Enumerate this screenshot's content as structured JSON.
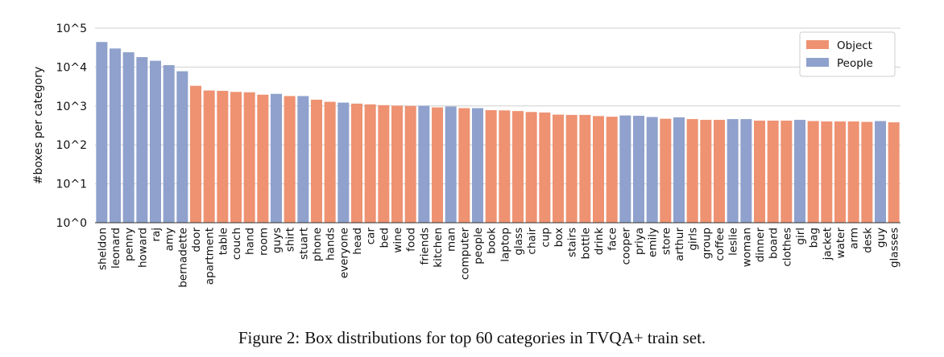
{
  "chart_data": {
    "type": "bar",
    "yscale": "log",
    "ylabel": "#boxes per category",
    "ylim": [
      1,
      100000
    ],
    "ytick_labels": [
      "10^0",
      "10^1",
      "10^2",
      "10^3",
      "10^4",
      "10^5"
    ],
    "legend": [
      {
        "name": "Object",
        "color": "#ee9272"
      },
      {
        "name": "People",
        "color": "#8fa1cc"
      }
    ],
    "legend_position": "top-right",
    "colors": {
      "Object": "#ee9272",
      "People": "#8fa1cc"
    },
    "categories": [
      "sheldon",
      "leonard",
      "penny",
      "howard",
      "raj",
      "amy",
      "bernadette",
      "door",
      "apartment",
      "table",
      "couch",
      "hand",
      "room",
      "guys",
      "shirt",
      "stuart",
      "phone",
      "hands",
      "everyone",
      "head",
      "car",
      "bed",
      "wine",
      "food",
      "friends",
      "kitchen",
      "man",
      "computer",
      "people",
      "book",
      "laptop",
      "glass",
      "chair",
      "cup",
      "box",
      "stairs",
      "bottle",
      "drink",
      "face",
      "cooper",
      "priya",
      "emily",
      "store",
      "arthur",
      "girls",
      "group",
      "coffee",
      "leslie",
      "woman",
      "dinner",
      "board",
      "clothes",
      "girl",
      "bag",
      "jacket",
      "water",
      "arm",
      "desk",
      "guy",
      "glasses"
    ],
    "groups": [
      "People",
      "People",
      "People",
      "People",
      "People",
      "People",
      "People",
      "Object",
      "Object",
      "Object",
      "Object",
      "Object",
      "Object",
      "People",
      "Object",
      "People",
      "Object",
      "Object",
      "People",
      "Object",
      "Object",
      "Object",
      "Object",
      "Object",
      "People",
      "Object",
      "People",
      "Object",
      "People",
      "Object",
      "Object",
      "Object",
      "Object",
      "Object",
      "Object",
      "Object",
      "Object",
      "Object",
      "Object",
      "People",
      "People",
      "People",
      "Object",
      "People",
      "Object",
      "Object",
      "Object",
      "People",
      "People",
      "Object",
      "Object",
      "Object",
      "People",
      "Object",
      "Object",
      "Object",
      "Object",
      "Object",
      "People",
      "Object"
    ],
    "values": [
      44000,
      30000,
      24000,
      18000,
      14500,
      11200,
      7800,
      3300,
      2500,
      2450,
      2300,
      2250,
      1950,
      2050,
      1800,
      1800,
      1450,
      1280,
      1220,
      1150,
      1100,
      1050,
      1020,
      1000,
      1010,
      920,
      970,
      880,
      880,
      780,
      770,
      740,
      700,
      680,
      600,
      590,
      590,
      550,
      530,
      570,
      560,
      520,
      470,
      510,
      460,
      440,
      440,
      460,
      460,
      420,
      420,
      420,
      440,
      410,
      400,
      400,
      400,
      390,
      410,
      380
    ]
  },
  "caption": {
    "label": "Figure 2:",
    "text": "Box distributions for top 60 categories in TVQA+ train set."
  }
}
